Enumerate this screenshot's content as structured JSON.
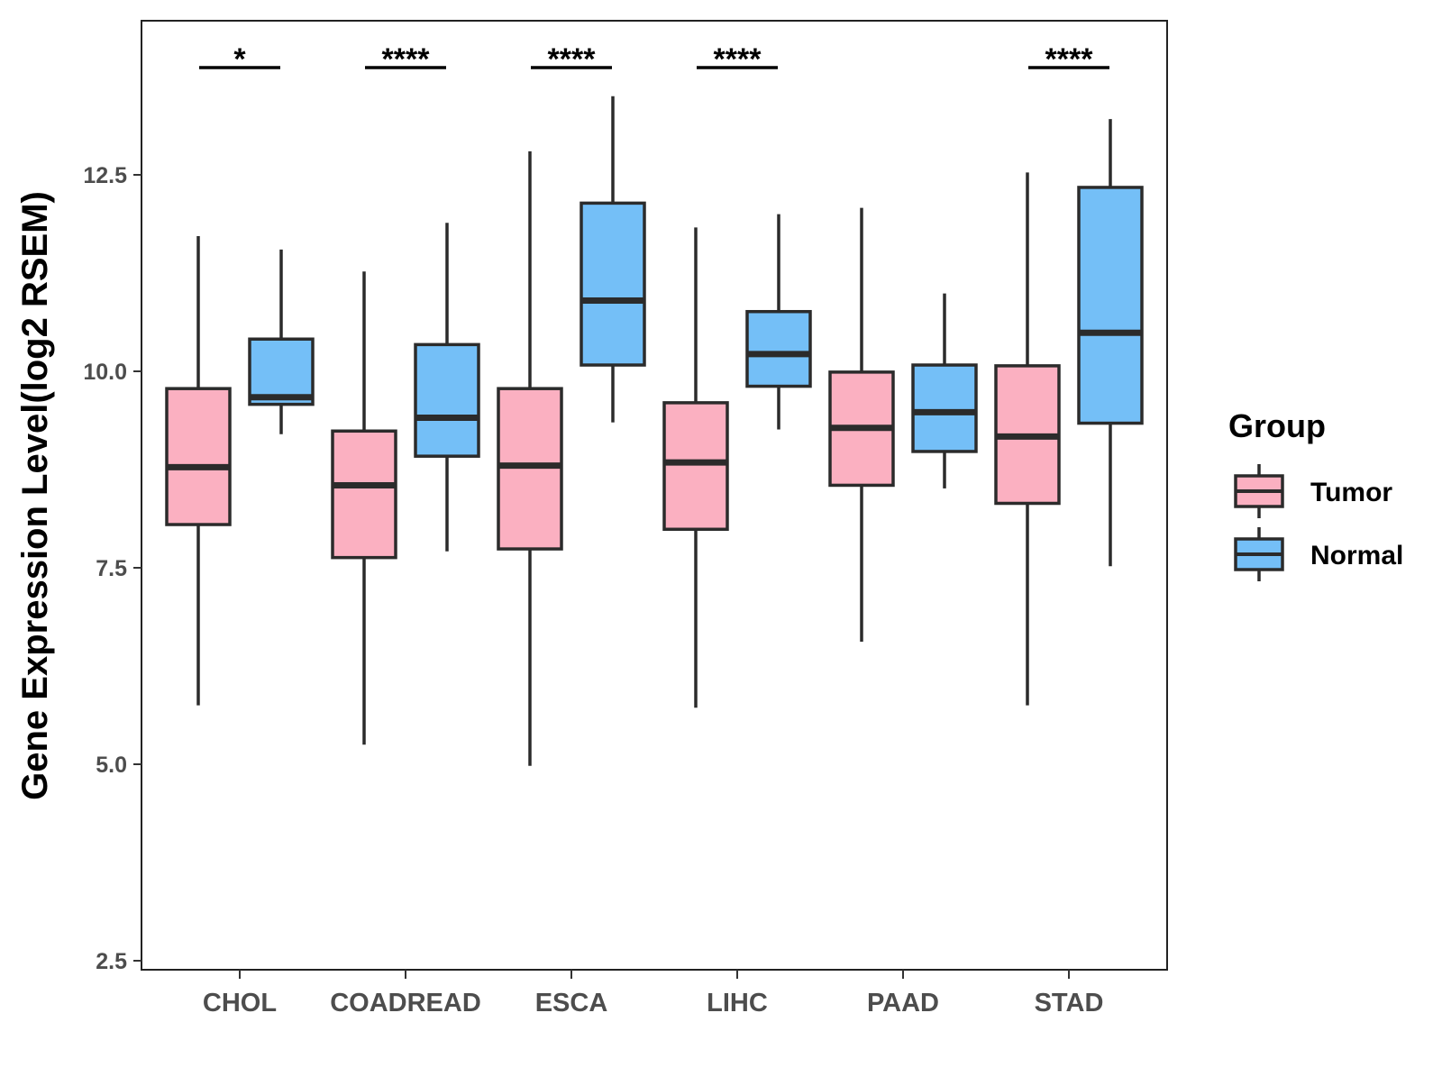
{
  "chart_data": {
    "type": "boxplot",
    "title": "",
    "xlabel": "",
    "ylabel": "Gene Expression Level(log2 RSEM)",
    "ylim": [
      2.4,
      14.5
    ],
    "yticks": [
      "2.5",
      "5.0",
      "7.5",
      "10.0",
      "12.5"
    ],
    "ytick_values": [
      2.5,
      5.0,
      7.5,
      10.0,
      12.5
    ],
    "categories": [
      "CHOL",
      "COADREAD",
      "ESCA",
      "LIHC",
      "PAAD",
      "STAD"
    ],
    "series": [
      {
        "name": "Tumor",
        "color": "#fbb0c1",
        "boxes": [
          {
            "whisker_low": 5.75,
            "q1": 8.05,
            "median": 8.78,
            "q3": 9.78,
            "whisker_high": 11.72
          },
          {
            "whisker_low": 5.25,
            "q1": 7.63,
            "median": 8.55,
            "q3": 9.24,
            "whisker_high": 11.27
          },
          {
            "whisker_low": 4.98,
            "q1": 7.74,
            "median": 8.8,
            "q3": 9.78,
            "whisker_high": 12.8
          },
          {
            "whisker_low": 5.72,
            "q1": 7.99,
            "median": 8.84,
            "q3": 9.6,
            "whisker_high": 11.83
          },
          {
            "whisker_low": 6.56,
            "q1": 8.55,
            "median": 9.28,
            "q3": 9.99,
            "whisker_high": 12.08
          },
          {
            "whisker_low": 5.75,
            "q1": 8.32,
            "median": 9.17,
            "q3": 10.07,
            "whisker_high": 12.53
          }
        ]
      },
      {
        "name": "Normal",
        "color": "#74bff7",
        "boxes": [
          {
            "whisker_low": 9.2,
            "q1": 9.58,
            "median": 9.67,
            "q3": 10.41,
            "whisker_high": 11.55
          },
          {
            "whisker_low": 7.71,
            "q1": 8.92,
            "median": 9.41,
            "q3": 10.34,
            "whisker_high": 11.89
          },
          {
            "whisker_low": 9.35,
            "q1": 10.08,
            "median": 10.9,
            "q3": 12.14,
            "whisker_high": 13.5
          },
          {
            "whisker_low": 9.26,
            "q1": 9.81,
            "median": 10.22,
            "q3": 10.76,
            "whisker_high": 12.0
          },
          {
            "whisker_low": 8.51,
            "q1": 8.98,
            "median": 9.48,
            "q3": 10.08,
            "whisker_high": 10.99
          },
          {
            "whisker_low": 7.52,
            "q1": 9.34,
            "median": 10.49,
            "q3": 12.34,
            "whisker_high": 13.21
          }
        ]
      }
    ],
    "significance": [
      "*",
      "****",
      "****",
      "****",
      "",
      "****"
    ],
    "legend": {
      "title": "Group",
      "position": "right",
      "entries": [
        "Tumor",
        "Normal"
      ]
    },
    "grid": false
  }
}
